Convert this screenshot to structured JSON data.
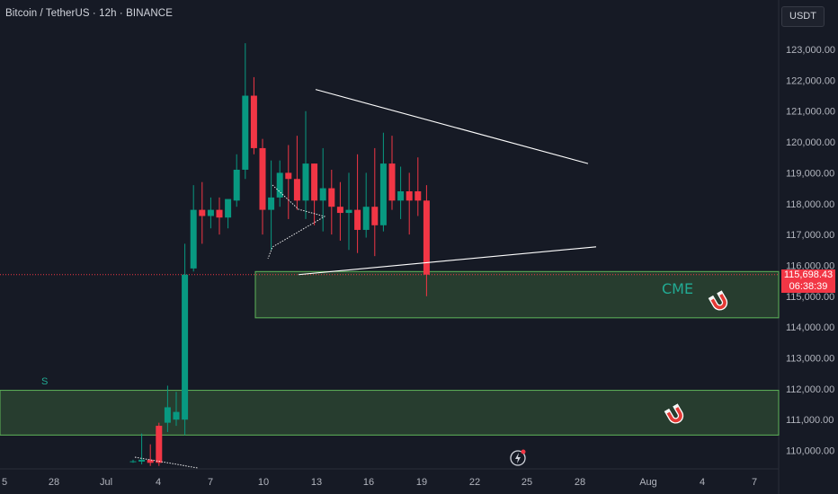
{
  "header": {
    "symbol_title": "Bitcoin / TetherUS · 12h · BINANCE",
    "currency_label": "USDT"
  },
  "last_price": {
    "price": "115,698.43",
    "countdown": "06:38:39"
  },
  "annotations": {
    "cme_label": "CME",
    "s_label": "S",
    "magnet_icon": "magnet-icon",
    "flash_icon": "lightning-icon"
  },
  "colors": {
    "background": "#161a25",
    "up": "#089981",
    "down": "#f23645",
    "zone_fill": "#2e4a33",
    "zone_border": "#5fb55a",
    "trendline": "#ffffff",
    "cme_text": "#22ab94"
  },
  "chart_data": {
    "type": "candlestick",
    "interval": "12h",
    "ylim": [
      109500,
      123600
    ],
    "y_ticks": [
      "110,000.00",
      "111,000.00",
      "112,000.00",
      "113,000.00",
      "114,000.00",
      "115,000.00",
      "116,000.00",
      "117,000.00",
      "118,000.00",
      "119,000.00",
      "120,000.00",
      "121,000.00",
      "122,000.00",
      "123,000.00"
    ],
    "x_ticks": [
      "5",
      "28",
      "Jul",
      "4",
      "7",
      "10",
      "13",
      "16",
      "19",
      "22",
      "25",
      "28",
      "Aug",
      "4",
      "7"
    ],
    "candles": [
      {
        "o": 109650,
        "h": 109700,
        "c": 109650,
        "l": 109600
      },
      {
        "o": 109640,
        "h": 110550,
        "c": 109700,
        "l": 109550
      },
      {
        "o": 109700,
        "h": 110200,
        "c": 109600,
        "l": 109500
      },
      {
        "o": 110800,
        "h": 110900,
        "c": 109600,
        "l": 109500
      },
      {
        "o": 110900,
        "h": 112100,
        "c": 111400,
        "l": 110600
      },
      {
        "o": 111000,
        "h": 111900,
        "c": 111250,
        "l": 110800
      },
      {
        "o": 111000,
        "h": 116700,
        "c": 115700,
        "l": 110500
      },
      {
        "o": 115900,
        "h": 118600,
        "c": 117800,
        "l": 115800
      },
      {
        "o": 117800,
        "h": 118700,
        "c": 117600,
        "l": 116700
      },
      {
        "o": 117600,
        "h": 118200,
        "c": 117800,
        "l": 117200
      },
      {
        "o": 117800,
        "h": 118200,
        "c": 117550,
        "l": 117000
      },
      {
        "o": 117550,
        "h": 118100,
        "c": 118150,
        "l": 117200
      },
      {
        "o": 118100,
        "h": 119600,
        "c": 119100,
        "l": 117900
      },
      {
        "o": 119100,
        "h": 123200,
        "c": 121500,
        "l": 118800
      },
      {
        "o": 121500,
        "h": 122100,
        "c": 119800,
        "l": 119600
      },
      {
        "o": 119800,
        "h": 120100,
        "c": 117800,
        "l": 117000
      },
      {
        "o": 117800,
        "h": 119400,
        "c": 118200,
        "l": 116500
      },
      {
        "o": 118200,
        "h": 119400,
        "c": 119000,
        "l": 117900
      },
      {
        "o": 119000,
        "h": 119900,
        "c": 118800,
        "l": 117500
      },
      {
        "o": 118800,
        "h": 120200,
        "c": 118100,
        "l": 117800
      },
      {
        "o": 118100,
        "h": 121000,
        "c": 119300,
        "l": 117500
      },
      {
        "o": 119300,
        "h": 119300,
        "c": 118100,
        "l": 117300
      },
      {
        "o": 118100,
        "h": 119800,
        "c": 118500,
        "l": 117100
      },
      {
        "o": 118500,
        "h": 119100,
        "c": 117900,
        "l": 117000
      },
      {
        "o": 117900,
        "h": 118700,
        "c": 117700,
        "l": 116800
      },
      {
        "o": 117700,
        "h": 119000,
        "c": 117800,
        "l": 116500
      },
      {
        "o": 117800,
        "h": 119600,
        "c": 117150,
        "l": 116400
      },
      {
        "o": 117150,
        "h": 119000,
        "c": 117900,
        "l": 116900
      },
      {
        "o": 117900,
        "h": 119800,
        "c": 117300,
        "l": 116300
      },
      {
        "o": 117300,
        "h": 120300,
        "c": 119300,
        "l": 117100
      },
      {
        "o": 119300,
        "h": 120200,
        "c": 118100,
        "l": 117800
      },
      {
        "o": 118100,
        "h": 119200,
        "c": 118400,
        "l": 117500
      },
      {
        "o": 118400,
        "h": 119000,
        "c": 118100,
        "l": 117000
      },
      {
        "o": 118400,
        "h": 119500,
        "c": 118100,
        "l": 117600
      },
      {
        "o": 118100,
        "h": 118600,
        "c": 115700,
        "l": 115000
      }
    ],
    "zones": [
      {
        "label": "CME",
        "top": 115800,
        "bottom": 114300
      },
      {
        "label": "S",
        "top": 111950,
        "bottom": 110500
      }
    ],
    "trendlines": [
      {
        "from": {
          "bar": 13,
          "price": 121700
        },
        "to": {
          "bar": 38,
          "price": 119300
        }
      },
      {
        "from": {
          "bar": 11,
          "price": 115700
        },
        "to": {
          "bar": 38,
          "price": 116600
        }
      }
    ]
  }
}
